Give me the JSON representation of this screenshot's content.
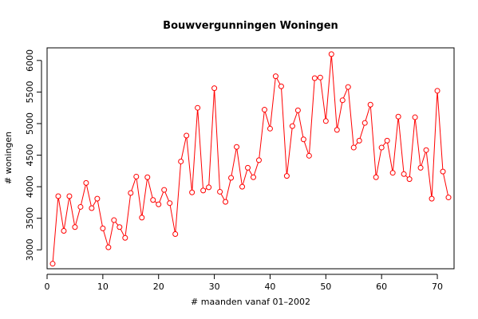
{
  "chart_data": {
    "type": "line",
    "title": "Bouwvergunningen Woningen",
    "xlabel": "# maanden vanaf 01–2002",
    "ylabel": "# woningen",
    "xlim": [
      0,
      73
    ],
    "ylim": [
      2700,
      6200
    ],
    "xticks": [
      0,
      10,
      20,
      30,
      40,
      50,
      60,
      70
    ],
    "yticks": [
      3000,
      3500,
      4000,
      4500,
      5000,
      5500,
      6000
    ],
    "grid": false,
    "legend": "none",
    "colors": {
      "line": "#ff0000",
      "axis": "#000000",
      "background": "#ffffff"
    },
    "series": [
      {
        "x": [
          1,
          2,
          3,
          4,
          5,
          6,
          7,
          8,
          9,
          10,
          11,
          12,
          13,
          14,
          15,
          16,
          17,
          18,
          19,
          20,
          21,
          22,
          23,
          24,
          25,
          26,
          27,
          28,
          29,
          30,
          31,
          32,
          33,
          34,
          35,
          36,
          37,
          38,
          39,
          40,
          41,
          42,
          43,
          44,
          45,
          46,
          47,
          48,
          49,
          50,
          51,
          52,
          53,
          54,
          55,
          56,
          57,
          58,
          59,
          60,
          61,
          62,
          63,
          64,
          65,
          66,
          67,
          68,
          69,
          70,
          71,
          72
        ],
        "values": [
          2780,
          3850,
          3300,
          3850,
          3360,
          3680,
          4060,
          3660,
          3810,
          3340,
          3040,
          3470,
          3360,
          3190,
          3900,
          4160,
          3510,
          4150,
          3790,
          3720,
          3950,
          3740,
          3250,
          4400,
          4810,
          3910,
          5250,
          3940,
          3990,
          5560,
          3920,
          3760,
          4140,
          4630,
          4000,
          4300,
          4150,
          4420,
          5220,
          4920,
          5750,
          5590,
          4170,
          4960,
          5210,
          4750,
          4490,
          5720,
          5730,
          5040,
          6100,
          4900,
          5370,
          5580,
          4620,
          4730,
          5010,
          5300,
          4150,
          4620,
          4730,
          4220,
          5110,
          4200,
          4120,
          5100,
          4300,
          4580,
          3810,
          5520,
          4240,
          3830
        ]
      }
    ]
  }
}
